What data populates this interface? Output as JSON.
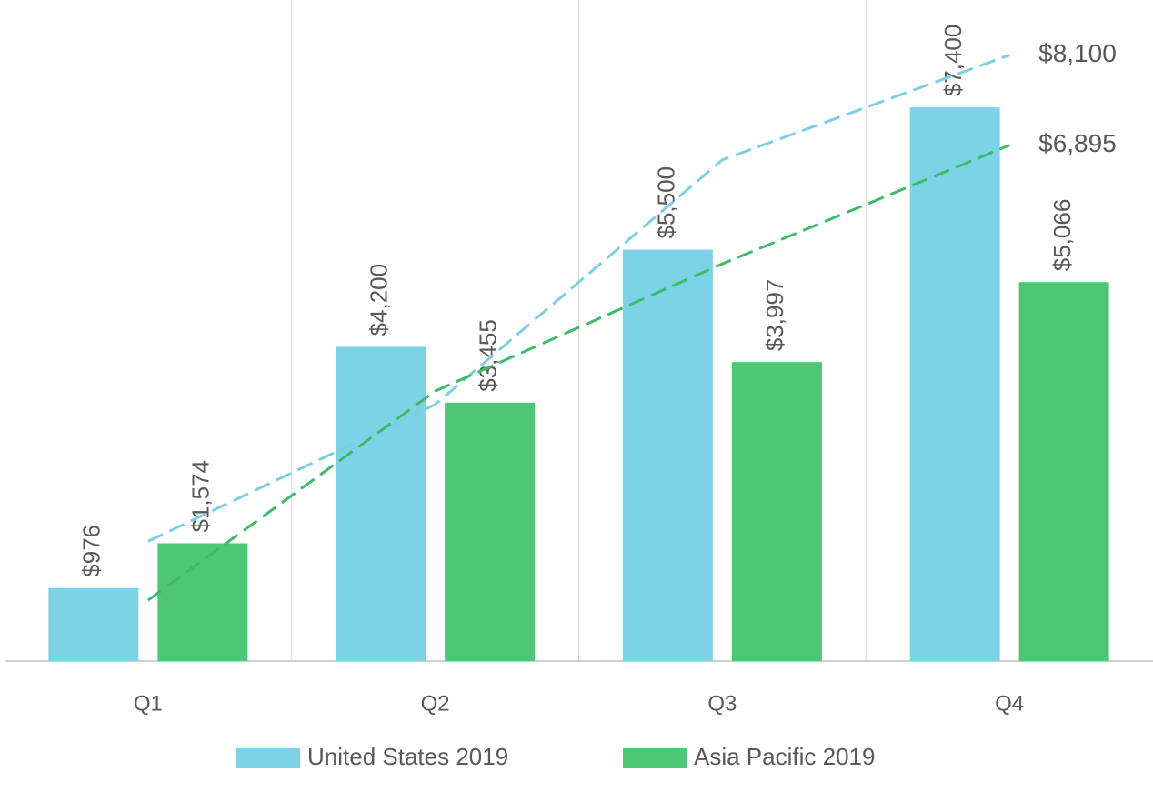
{
  "chart_data": {
    "type": "bar",
    "categories": [
      "Q1",
      "Q2",
      "Q3",
      "Q4"
    ],
    "series": [
      {
        "name": "United States 2019",
        "color": "#7dd3e6",
        "values": [
          976,
          4200,
          5500,
          7400
        ],
        "value_labels": [
          "$976",
          "$4,200",
          "$5,500",
          "$7,400"
        ]
      },
      {
        "name": "Asia Pacific 2019",
        "color": "#4cc775",
        "values": [
          1574,
          3455,
          3997,
          5066
        ],
        "value_labels": [
          "$1,574",
          "$3,455",
          "$3,997",
          "$5,066"
        ]
      }
    ],
    "lines": [
      {
        "color": "#7ccfe0",
        "dashed": true,
        "values": [
          1600,
          3430,
          6700,
          8100
        ],
        "value_labels": [
          null,
          null,
          null,
          "$8,100"
        ]
      },
      {
        "color": "#3dbb6b",
        "dashed": true,
        "values": [
          814,
          3609,
          5310,
          6895
        ],
        "value_labels": [
          null,
          null,
          null,
          "$6,895"
        ]
      }
    ],
    "ylim": [
      0,
      8800
    ],
    "grid": true,
    "legend": "bottom"
  }
}
